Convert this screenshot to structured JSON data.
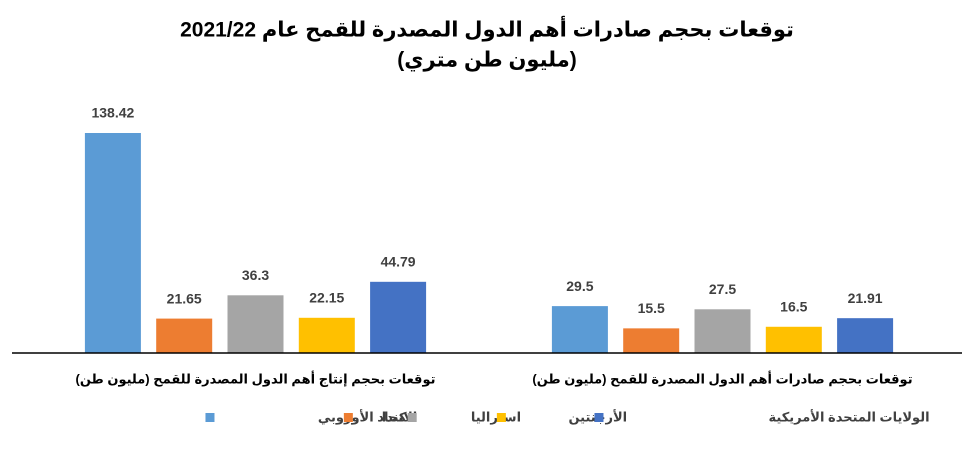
{
  "chart_data": {
    "type": "bar",
    "title": "توقعات بحجم صادرات أهم الدول المصدرة للقمح عام 2021/22",
    "subtitle": "(مليون طن متري)",
    "categories": [
      "توقعات بحجم إنتاج أهم الدول المصدرة للقمح (مليون طن)",
      "توقعات بحجم صادرات أهم الدول المصدرة للقمح (مليون طن)"
    ],
    "series": [
      {
        "name": "الاتحاد الأوروبي",
        "color": "#5b9bd5",
        "values": [
          138.42,
          29.5
        ]
      },
      {
        "name": "كندا",
        "color": "#ed7d31",
        "values": [
          21.65,
          15.5
        ]
      },
      {
        "name": "استراليا",
        "color": "#a5a5a5",
        "values": [
          36.3,
          27.5
        ]
      },
      {
        "name": "الأرجنتين",
        "color": "#ffc000",
        "values": [
          22.15,
          16.5
        ]
      },
      {
        "name": "الولايات المتحدة الأمريكية",
        "color": "#4472c4",
        "values": [
          44.79,
          21.91
        ]
      }
    ],
    "legend": "bottom"
  }
}
